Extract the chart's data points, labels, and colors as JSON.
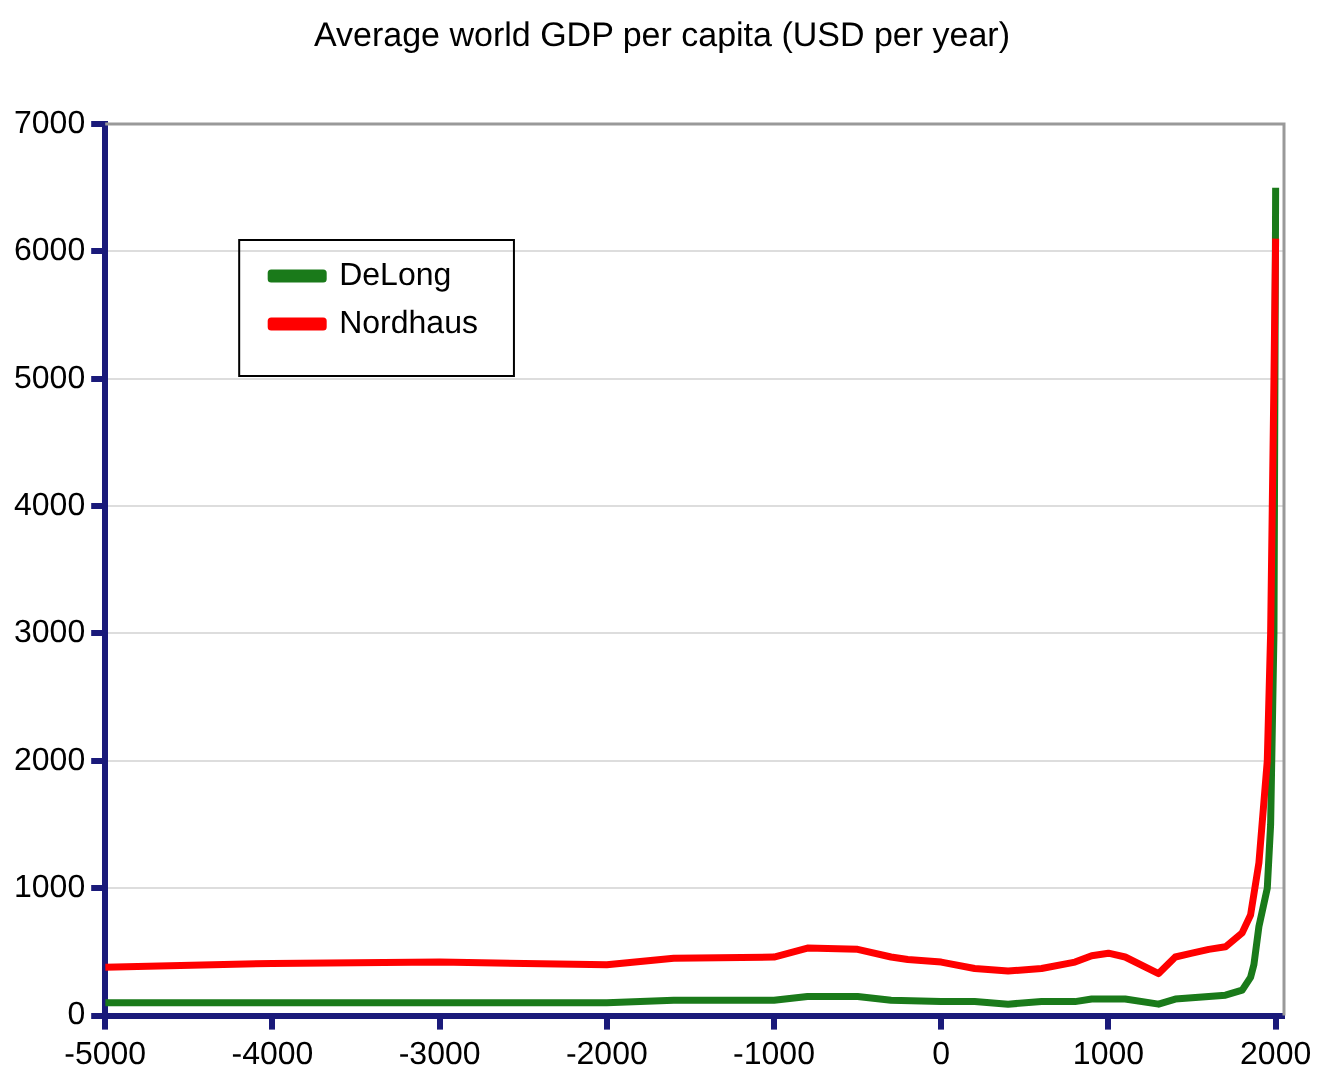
{
  "chart_data": {
    "type": "line",
    "title": "Average world GDP per capita (USD per year)",
    "xlim": [
      -5000,
      2050
    ],
    "xticks": [
      -5000,
      -4000,
      -3000,
      -2000,
      -1000,
      0,
      1000,
      2000
    ],
    "ylim": [
      0,
      7000
    ],
    "yticks": [
      0,
      1000,
      2000,
      3000,
      4000,
      5000,
      6000,
      7000
    ],
    "grid": "y",
    "legend": "top left",
    "marker": "none",
    "line_style": "solid",
    "series": [
      {
        "name": "DeLong",
        "color": "#1a7a1a",
        "x": [
          -5000,
          -4000,
          -3000,
          -2000,
          -1600,
          -1000,
          -800,
          -500,
          -300,
          0,
          200,
          400,
          600,
          800,
          900,
          1100,
          1300,
          1400,
          1500,
          1700,
          1800,
          1850,
          1870,
          1900,
          1950,
          1970,
          1990,
          2000
        ],
        "values": [
          100,
          100,
          100,
          100,
          120,
          120,
          150,
          150,
          120,
          110,
          110,
          90,
          110,
          110,
          130,
          130,
          90,
          130,
          140,
          160,
          200,
          300,
          400,
          700,
          1000,
          1500,
          3000,
          6500
        ]
      },
      {
        "name": "Nordhaus",
        "color": "#ff0000",
        "x": [
          -5000,
          -4000,
          -3000,
          -2000,
          -1600,
          -1000,
          -800,
          -500,
          -300,
          -200,
          0,
          200,
          400,
          600,
          800,
          900,
          1000,
          1100,
          1300,
          1400,
          1500,
          1600,
          1700,
          1800,
          1850,
          1900,
          1950,
          1970,
          1990,
          2000
        ],
        "values": [
          380,
          410,
          420,
          400,
          450,
          460,
          530,
          520,
          460,
          440,
          420,
          370,
          350,
          370,
          420,
          470,
          490,
          460,
          330,
          460,
          490,
          520,
          540,
          650,
          790,
          1200,
          2000,
          3000,
          5000,
          6100
        ]
      }
    ]
  }
}
